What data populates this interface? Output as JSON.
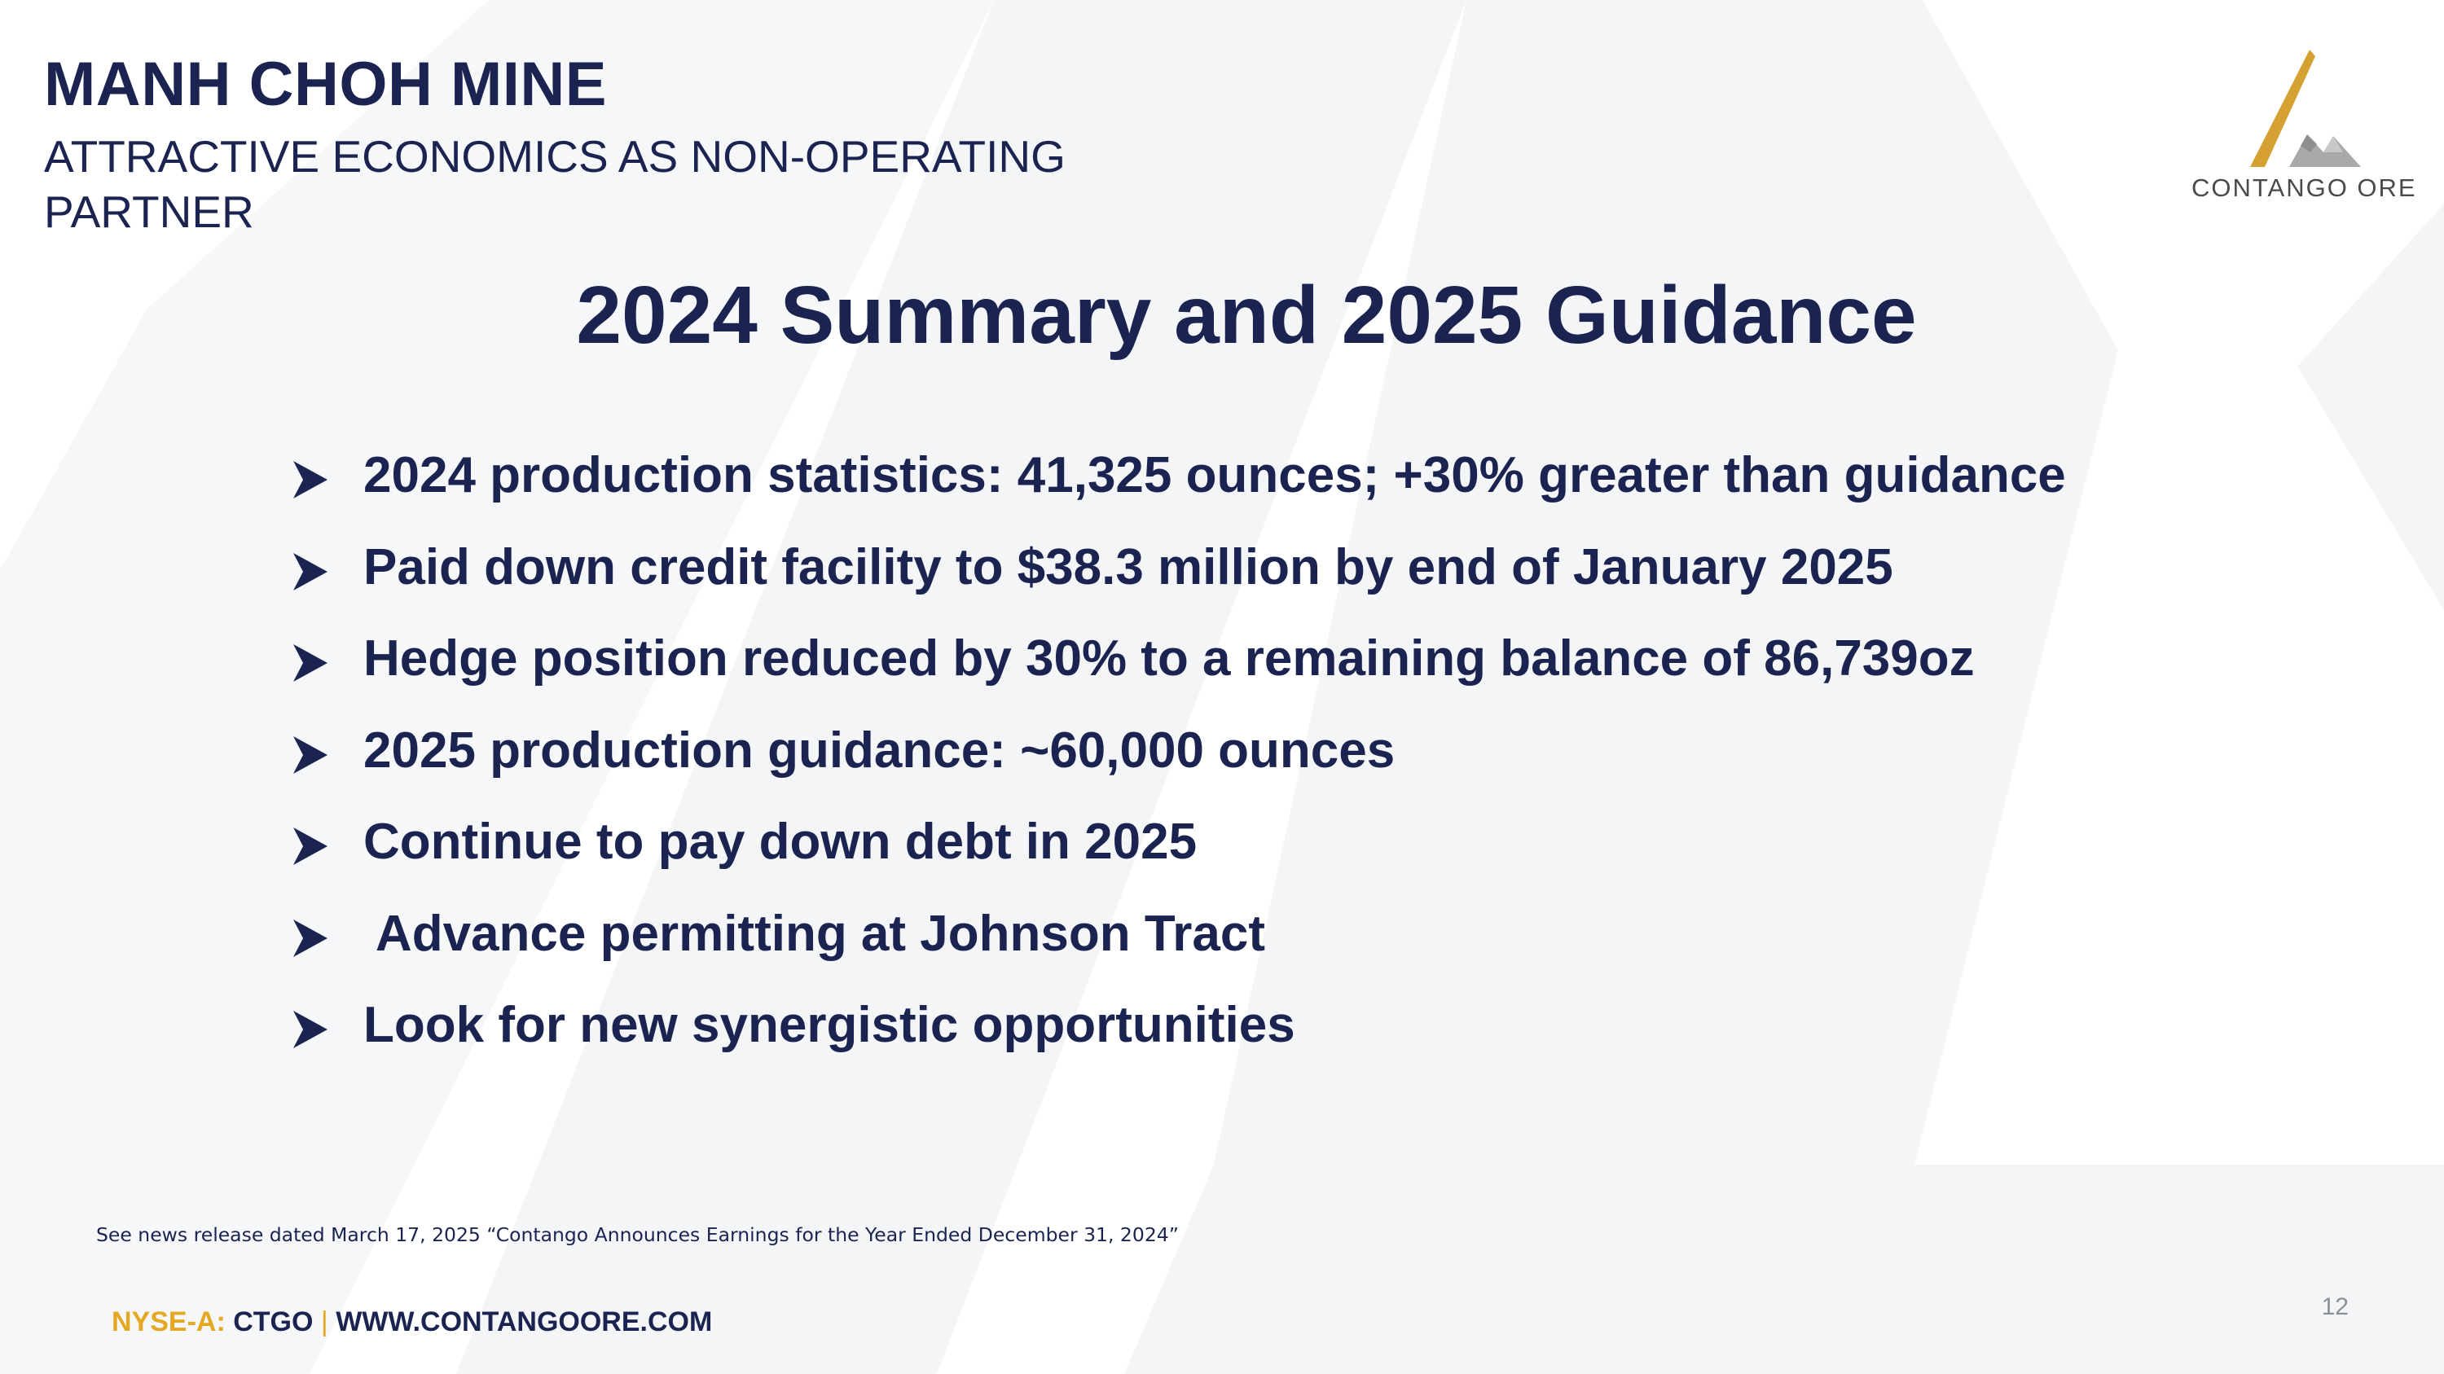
{
  "header": {
    "section_title": "MANH CHOH MINE",
    "section_subtitle": "ATTRACTIVE ECONOMICS AS NON-OPERATING PARTNER"
  },
  "logo": {
    "text": "CONTANGO ORE",
    "icon": "mountain-logo-icon",
    "colors": {
      "gold": "#D4A132",
      "silver": "#A8A8A8"
    }
  },
  "slide": {
    "heading": "2024 Summary and 2025 Guidance",
    "bullet_icon": "arrowhead-bullet-icon",
    "bullets": [
      "2024 production statistics: 41,325 ounces; +30% greater than guidance",
      "Paid down credit facility to $38.3 million by end of January 2025",
      "Hedge position reduced by 30% to a remaining balance of 86,739oz",
      "2025 production guidance: ~60,000 ounces",
      "Continue to pay down debt in 2025",
      " Advance permitting at Johnson Tract",
      "Look for new synergistic opportunities"
    ]
  },
  "footnote": "See news release dated March 17, 2025 “Contango Announces Earnings for the Year Ended December 31, 2024”",
  "footer": {
    "exchange": "NYSE-A: ",
    "ticker": "CTGO",
    "separator": "|",
    "website": "WWW.CONTANGOORE.COM"
  },
  "page_number": "12",
  "colors": {
    "navy": "#1B2451",
    "gold": "#E5A823",
    "background_shape": "#F3F4F6"
  }
}
